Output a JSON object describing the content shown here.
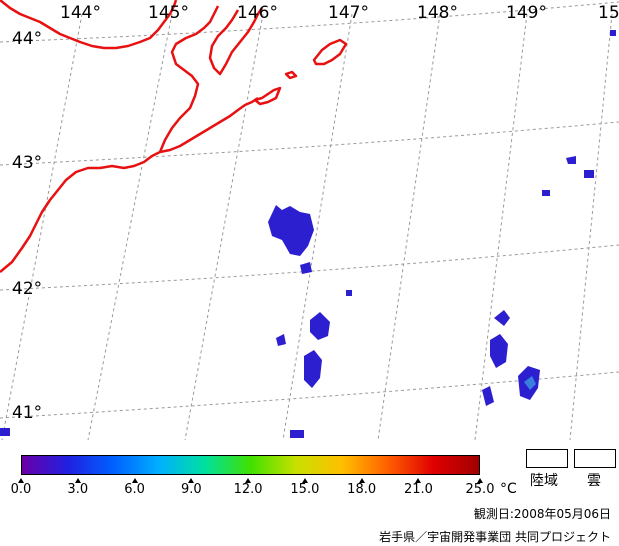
{
  "map": {
    "longitude_labels": [
      "144°",
      "145°",
      "146°",
      "147°",
      "148°",
      "149°",
      "15"
    ],
    "latitude_labels": [
      "44°",
      "43°",
      "42°",
      "41°"
    ]
  },
  "colorbar": {
    "unit": "°C",
    "ticks": [
      "0.0",
      "3.0",
      "6.0",
      "9.0",
      "12.0",
      "15.0",
      "18.0",
      "21.0",
      "25.0"
    ],
    "colors": [
      "#6a00a8",
      "#2020e0",
      "#0060ff",
      "#00b0ff",
      "#00e0a0",
      "#40e000",
      "#c8e000",
      "#ffc000",
      "#ff6000",
      "#e00000",
      "#a00000"
    ]
  },
  "legend": {
    "land_label": "陸域",
    "cloud_label": "雲"
  },
  "footer": {
    "observation_date": "観測日:2008年05月06日",
    "credit": "岩手県／宇宙開発事業団  共同プロジェクト"
  }
}
